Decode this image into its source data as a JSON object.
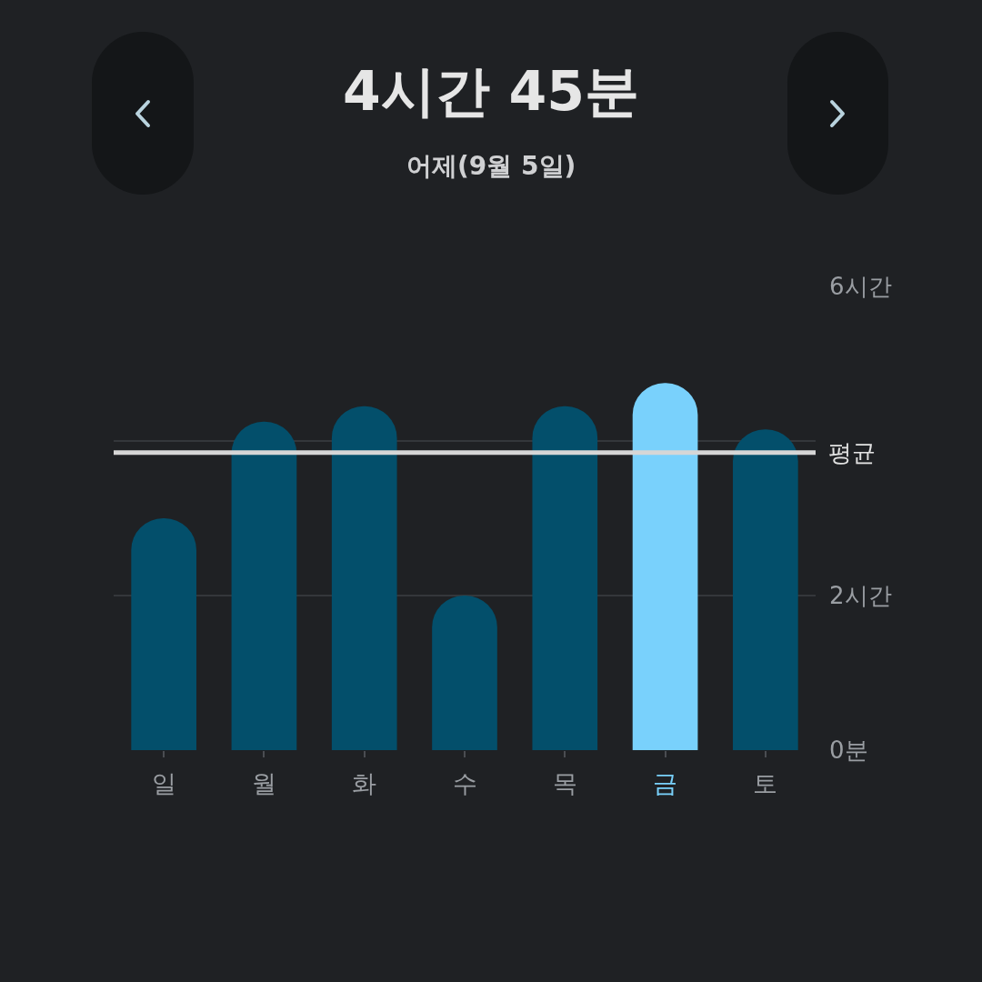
{
  "chart_data": {
    "type": "bar",
    "title": "4시간 45분",
    "subtitle": "어제(9월 5일)",
    "categories": [
      "일",
      "월",
      "화",
      "수",
      "목",
      "금",
      "토"
    ],
    "values": [
      3.0,
      4.25,
      4.45,
      2.0,
      4.45,
      4.75,
      4.15
    ],
    "colors": [
      "#034f6b",
      "#034f6b",
      "#034f6b",
      "#034f6b",
      "#034f6b",
      "#79d1fc",
      "#034f6b"
    ],
    "ylim": [
      0,
      6
    ],
    "yticks": [
      {
        "value": 0,
        "label": "0분"
      },
      {
        "value": 2,
        "label": "2시간"
      },
      {
        "value": 4,
        "label": null
      },
      {
        "value": 6,
        "label": "6시간"
      }
    ],
    "ref_lines": [
      {
        "axis": "y",
        "value": 3.85,
        "label": "평균",
        "color": "#d6d6d6"
      }
    ],
    "grid": "y"
  }
}
